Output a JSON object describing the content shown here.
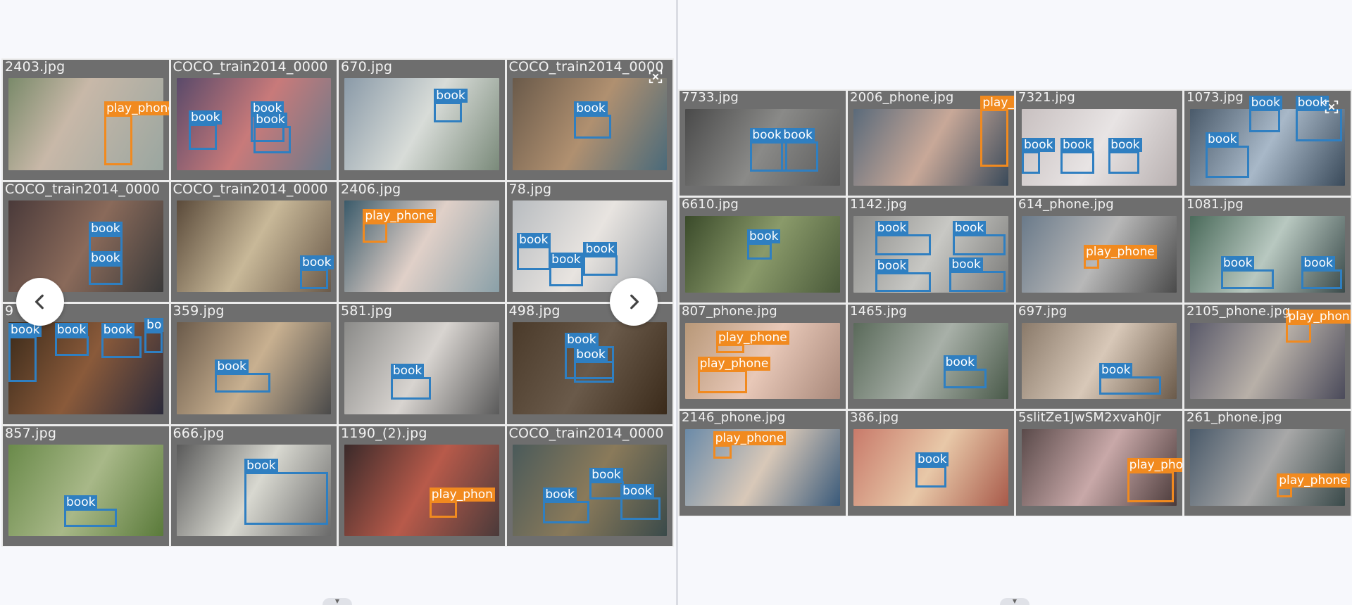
{
  "left": {
    "tiles": [
      {
        "name": "2403.jpg",
        "bg": "linear-gradient(120deg,#7a8a6a,#c8b8a8 40%,#9aa6a0)",
        "dets": [
          {
            "label": "play_phone",
            "color": "orange"
          }
        ]
      },
      {
        "name": "COCO_train2014_0000",
        "bg": "linear-gradient(120deg,#5a4a6a,#c87a7a 50%,#6a7a8a)",
        "dets": [
          {
            "label": "book",
            "color": "blue"
          },
          {
            "label": "book",
            "color": "blue"
          },
          {
            "label": "book",
            "color": "blue"
          }
        ]
      },
      {
        "name": "670.jpg",
        "bg": "linear-gradient(120deg,#8a9aa8,#d8dcd8 50%,#7a8a7a)",
        "dets": [
          {
            "label": "book",
            "color": "blue"
          }
        ]
      },
      {
        "name": "COCO_train2014_0000",
        "bg": "linear-gradient(120deg,#6a5a4a,#b09070 50%,#4a6a7a)",
        "dets": [
          {
            "label": "book",
            "color": "blue"
          }
        ]
      },
      {
        "name": "COCO_train2014_0000",
        "bg": "linear-gradient(120deg,#4a3a3a,#8a6a5a 50%,#3a3a3a)",
        "dets": [
          {
            "label": "book",
            "color": "blue"
          },
          {
            "label": "book",
            "color": "blue"
          }
        ]
      },
      {
        "name": "COCO_train2014_0000",
        "bg": "linear-gradient(120deg,#5a4a3a,#c8b898 50%,#6a5a4a)",
        "dets": [
          {
            "label": "book",
            "color": "blue"
          }
        ]
      },
      {
        "name": "2406.jpg",
        "bg": "linear-gradient(120deg,#3a5a6a,#e0d0c8 50%,#8aa0a8)",
        "dets": [
          {
            "label": "play_phone",
            "color": "orange"
          }
        ]
      },
      {
        "name": "78.jpg",
        "bg": "linear-gradient(120deg,#b8bcc0,#e8e4e0 50%,#9aa0a6)",
        "dets": [
          {
            "label": "book",
            "color": "blue"
          },
          {
            "label": "book",
            "color": "blue"
          },
          {
            "label": "book",
            "color": "blue"
          }
        ]
      },
      {
        "name": "9",
        "bg": "linear-gradient(120deg,#3a2a1a,#8a5a3a 50%,#2a2a3a)",
        "dets": [
          {
            "label": "book",
            "color": "blue"
          },
          {
            "label": "book",
            "color": "blue"
          },
          {
            "label": "book",
            "color": "blue"
          },
          {
            "label": "bo",
            "color": "blue"
          }
        ]
      },
      {
        "name": "359.jpg",
        "bg": "linear-gradient(120deg,#6a5a4a,#c8b090 50%,#4a4a4a)",
        "dets": [
          {
            "label": "book",
            "color": "blue"
          }
        ]
      },
      {
        "name": "581.jpg",
        "bg": "linear-gradient(120deg,#8a8a88,#d8d4d0 50%,#5a5a5a)",
        "dets": [
          {
            "label": "book",
            "color": "blue"
          }
        ]
      },
      {
        "name": "498.jpg",
        "bg": "linear-gradient(120deg,#4a3a2a,#6a5a4a 50%,#3a2a1a)",
        "dets": [
          {
            "label": "book",
            "color": "blue"
          },
          {
            "label": "book",
            "color": "blue"
          }
        ]
      },
      {
        "name": "857.jpg",
        "bg": "linear-gradient(120deg,#6a8a4a,#a8b888 50%,#5a7a3a)",
        "dets": [
          {
            "label": "book",
            "color": "blue"
          }
        ]
      },
      {
        "name": "666.jpg",
        "bg": "linear-gradient(120deg,#5a5a5a,#d8d8d0 50%,#6a6a6a)",
        "dets": [
          {
            "label": "book",
            "color": "blue"
          }
        ]
      },
      {
        "name": "1190_(2).jpg",
        "bg": "linear-gradient(120deg,#3a2a2a,#b85a4a 50%,#4a3a3a)",
        "dets": [
          {
            "label": "play_phon",
            "color": "orange"
          }
        ]
      },
      {
        "name": "COCO_train2014_0000",
        "bg": "linear-gradient(120deg,#4a5a5a,#8a7a5a 50%,#3a4a4a)",
        "dets": [
          {
            "label": "book",
            "color": "blue"
          },
          {
            "label": "book",
            "color": "blue"
          },
          {
            "label": "book",
            "color": "blue"
          }
        ]
      }
    ]
  },
  "right": {
    "tiles": [
      {
        "name": "7733.jpg",
        "bg": "linear-gradient(120deg,#4a4a4a,#8a8a88 50%,#5a5a5a)",
        "dets": [
          {
            "label": "book",
            "color": "blue"
          },
          {
            "label": "book",
            "color": "blue"
          }
        ]
      },
      {
        "name": "2006_phone.jpg",
        "bg": "linear-gradient(120deg,#5a6a7a,#c8a898 50%,#3a4a5a)",
        "dets": [
          {
            "label": "play_",
            "color": "orange"
          }
        ]
      },
      {
        "name": "7321.jpg",
        "bg": "linear-gradient(120deg,#c8c0c0,#e8e4e4 50%,#b8b0b0)",
        "dets": [
          {
            "label": "book",
            "color": "blue"
          },
          {
            "label": "book",
            "color": "blue"
          },
          {
            "label": "book",
            "color": "blue"
          }
        ]
      },
      {
        "name": "1073.jpg",
        "bg": "linear-gradient(120deg,#4a5a6a,#a8b8c8 50%,#3a4a5a)",
        "dets": [
          {
            "label": "book",
            "color": "blue"
          },
          {
            "label": "book",
            "color": "blue"
          },
          {
            "label": "book",
            "color": "blue"
          }
        ]
      },
      {
        "name": "6610.jpg",
        "bg": "linear-gradient(120deg,#3a4a2a,#8a9a6a 50%,#4a5a3a)",
        "dets": [
          {
            "label": "book",
            "color": "blue"
          }
        ]
      },
      {
        "name": "1142.jpg",
        "bg": "linear-gradient(120deg,#8a8a88,#c8c8c4 50%,#7a7a78)",
        "dets": [
          {
            "label": "book",
            "color": "blue"
          },
          {
            "label": "book",
            "color": "blue"
          },
          {
            "label": "book",
            "color": "blue"
          },
          {
            "label": "book",
            "color": "blue"
          }
        ]
      },
      {
        "name": "614_phone.jpg",
        "bg": "linear-gradient(120deg,#6a7a8a,#b8b8b8 50%,#4a4a4a)",
        "dets": [
          {
            "label": "play_phone",
            "color": "orange"
          }
        ]
      },
      {
        "name": "1081.jpg",
        "bg": "linear-gradient(120deg,#4a6a5a,#b8c8c0 50%,#3a4a4a)",
        "dets": [
          {
            "label": "book",
            "color": "blue"
          },
          {
            "label": "book",
            "color": "blue"
          }
        ]
      },
      {
        "name": "807_phone.jpg",
        "bg": "linear-gradient(120deg,#b89878,#e8c8b8 50%,#a8887a)",
        "dets": [
          {
            "label": "play_phone",
            "color": "orange"
          },
          {
            "label": "play_phone",
            "color": "orange"
          }
        ]
      },
      {
        "name": "1465.jpg",
        "bg": "linear-gradient(120deg,#5a6a5a,#a8b0a8 50%,#4a5a4a)",
        "dets": [
          {
            "label": "book",
            "color": "blue"
          }
        ]
      },
      {
        "name": "697.jpg",
        "bg": "linear-gradient(120deg,#8a7a6a,#d8c8b8 50%,#6a5a4a)",
        "dets": [
          {
            "label": "book",
            "color": "blue"
          }
        ]
      },
      {
        "name": "2105_phone.jpg",
        "bg": "linear-gradient(120deg,#5a5a6a,#b8b0a8 50%,#4a4a5a)",
        "dets": [
          {
            "label": "play_phon",
            "color": "orange"
          }
        ]
      },
      {
        "name": "2146_phone.jpg",
        "bg": "linear-gradient(120deg,#6a8aa8,#d8c8b8 50%,#3a5a7a)",
        "dets": [
          {
            "label": "play_phone",
            "color": "orange"
          }
        ]
      },
      {
        "name": "386.jpg",
        "bg": "linear-gradient(120deg,#c87a6a,#e8c8a8 50%,#a85a4a)",
        "dets": [
          {
            "label": "book",
            "color": "blue"
          }
        ]
      },
      {
        "name": "5slitZe1JwSM2xvah0jr",
        "bg": "linear-gradient(120deg,#5a4a4a,#c8a8a8 50%,#4a3a3a)",
        "dets": [
          {
            "label": "play_pho",
            "color": "orange"
          }
        ]
      },
      {
        "name": "261_phone.jpg",
        "bg": "linear-gradient(120deg,#4a5a6a,#a8a8a8 50%,#3a4a4a)",
        "dets": [
          {
            "label": "play_phone",
            "color": "orange"
          }
        ]
      }
    ]
  },
  "colors": {
    "book": "#2f7fc1",
    "play_phone": "#f18a1f"
  },
  "icons": {
    "prev": "chevron-left-icon",
    "next": "chevron-right-icon",
    "expand": "expand-icon"
  }
}
